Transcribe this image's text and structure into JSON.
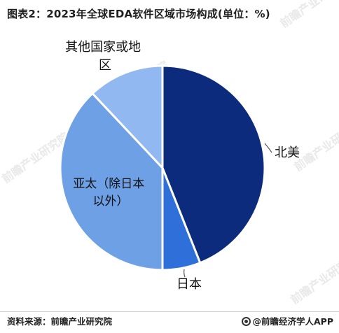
{
  "title": "图表2：2023年全球EDA软件区域市场构成(单位：%)",
  "source": "资料来源：前瞻产业研究院",
  "credit": "@前瞻经济学人APP",
  "watermark": "前瞻产业研究院",
  "chart_data": {
    "type": "pie",
    "categories": [
      "北美",
      "日本",
      "亚太（除日本以外）",
      "其他国家或地区"
    ],
    "values": [
      44,
      6,
      38,
      12
    ],
    "colors": [
      "#0d2b7c",
      "#2f6fd9",
      "#6ea0e6",
      "#91b8f0"
    ],
    "start_angle_deg": 0,
    "direction": "clockwise",
    "legend": "none",
    "labels_outside": [
      true,
      true,
      false,
      true
    ]
  }
}
